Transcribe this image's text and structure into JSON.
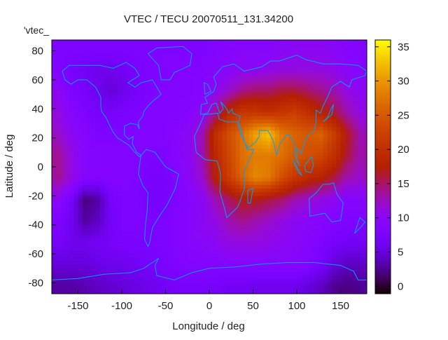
{
  "chart_data": {
    "type": "heatmap",
    "title": "VTEC / TECU 20070511_131.34200",
    "xlabel": "Longitude / deg",
    "ylabel": "Latitude / deg",
    "series_label": "'vtec_",
    "xlim": [
      -180,
      180
    ],
    "ylim": [
      -87.5,
      87.5
    ],
    "cbrange": [
      -1.1,
      36
    ],
    "xticks": [
      -150,
      -100,
      -50,
      0,
      50,
      100,
      150
    ],
    "yticks": [
      -80,
      -60,
      -40,
      -20,
      0,
      20,
      40,
      60,
      80
    ],
    "cbticks": [
      0,
      5,
      10,
      15,
      20,
      25,
      30,
      35
    ],
    "coastline_color": "#00a0ff",
    "colormap": "gnuplot rgbformulae 7,5,15",
    "grid_lon_centers": [
      -172.5,
      -157.5,
      -142.5,
      -127.5,
      -112.5,
      -97.5,
      -82.5,
      -67.5,
      -52.5,
      -37.5,
      -22.5,
      -7.5,
      7.5,
      22.5,
      37.5,
      52.5,
      67.5,
      82.5,
      97.5,
      112.5,
      127.5,
      142.5,
      157.5,
      172.5
    ],
    "grid_lat_centers": [
      82.5,
      67.5,
      52.5,
      37.5,
      22.5,
      7.5,
      -7.5,
      -22.5,
      -37.5,
      -52.5,
      -67.5,
      -82.5
    ],
    "values": [
      [
        8,
        8,
        8,
        8,
        8,
        8,
        8,
        8,
        8,
        8,
        8,
        8,
        8.5,
        9,
        9,
        9,
        9,
        9.5,
        10,
        10,
        10,
        9.5,
        9,
        8.5
      ],
      [
        8,
        7,
        6.5,
        6,
        6,
        6.5,
        7.5,
        8,
        8.5,
        8.5,
        8.5,
        8.5,
        9,
        9.5,
        10,
        10,
        10.5,
        11,
        11,
        11,
        11,
        10.5,
        9.5,
        9
      ],
      [
        10,
        8,
        7,
        6,
        5,
        6,
        7,
        8,
        8.5,
        8.5,
        8.5,
        9,
        10,
        12,
        14,
        15,
        15,
        16,
        16,
        15,
        14,
        13,
        11,
        10
      ],
      [
        11,
        9,
        8,
        7,
        7,
        7.5,
        8,
        8.5,
        8.5,
        8.5,
        9,
        10,
        14,
        19,
        21,
        21,
        20,
        21,
        22,
        20,
        18,
        16,
        13,
        11
      ],
      [
        12,
        10,
        9,
        8,
        8,
        8,
        8.5,
        8.5,
        8.5,
        9,
        10,
        13,
        20,
        24,
        27,
        31,
        33,
        28,
        26,
        25,
        26,
        22,
        17,
        13
      ],
      [
        14,
        11,
        9,
        8.5,
        8.5,
        8.5,
        8.5,
        8,
        8,
        9,
        10,
        13,
        19,
        23,
        27,
        28,
        28,
        27,
        25,
        24,
        23,
        20,
        16,
        13
      ],
      [
        14,
        11,
        9,
        8.5,
        8.5,
        8.5,
        8,
        7,
        7,
        8.5,
        10,
        12,
        18,
        22,
        26,
        29,
        28,
        24,
        21,
        19,
        18,
        16,
        13,
        12
      ],
      [
        10,
        7,
        2,
        3,
        7,
        8,
        8,
        7,
        7,
        8,
        9,
        10,
        13,
        15,
        17,
        17,
        16,
        15,
        13,
        12,
        11,
        10,
        9,
        9
      ],
      [
        8,
        6,
        3,
        4,
        6.5,
        8,
        8,
        7.5,
        8,
        8.5,
        9,
        10,
        11,
        13,
        14,
        13,
        12,
        11,
        10,
        9.5,
        9,
        8.5,
        8,
        8
      ],
      [
        7,
        6,
        6,
        6.5,
        7,
        7.5,
        7.5,
        7.5,
        8,
        8.5,
        9,
        9.5,
        10,
        11,
        11,
        11,
        10.5,
        10,
        9.5,
        9,
        8,
        7,
        6.5,
        6.5
      ],
      [
        5,
        5,
        5,
        5.5,
        6,
        6,
        6.5,
        7,
        7.5,
        8,
        8.5,
        8.5,
        8.5,
        9,
        9,
        9,
        9,
        9,
        9,
        8.5,
        7,
        5,
        4,
        4
      ],
      [
        3,
        3,
        3.5,
        4,
        4.5,
        5,
        5.5,
        6,
        6.5,
        7,
        7,
        7,
        7,
        6.5,
        6.5,
        6,
        6,
        6,
        6,
        5,
        4,
        2.5,
        2,
        2.5
      ]
    ]
  }
}
